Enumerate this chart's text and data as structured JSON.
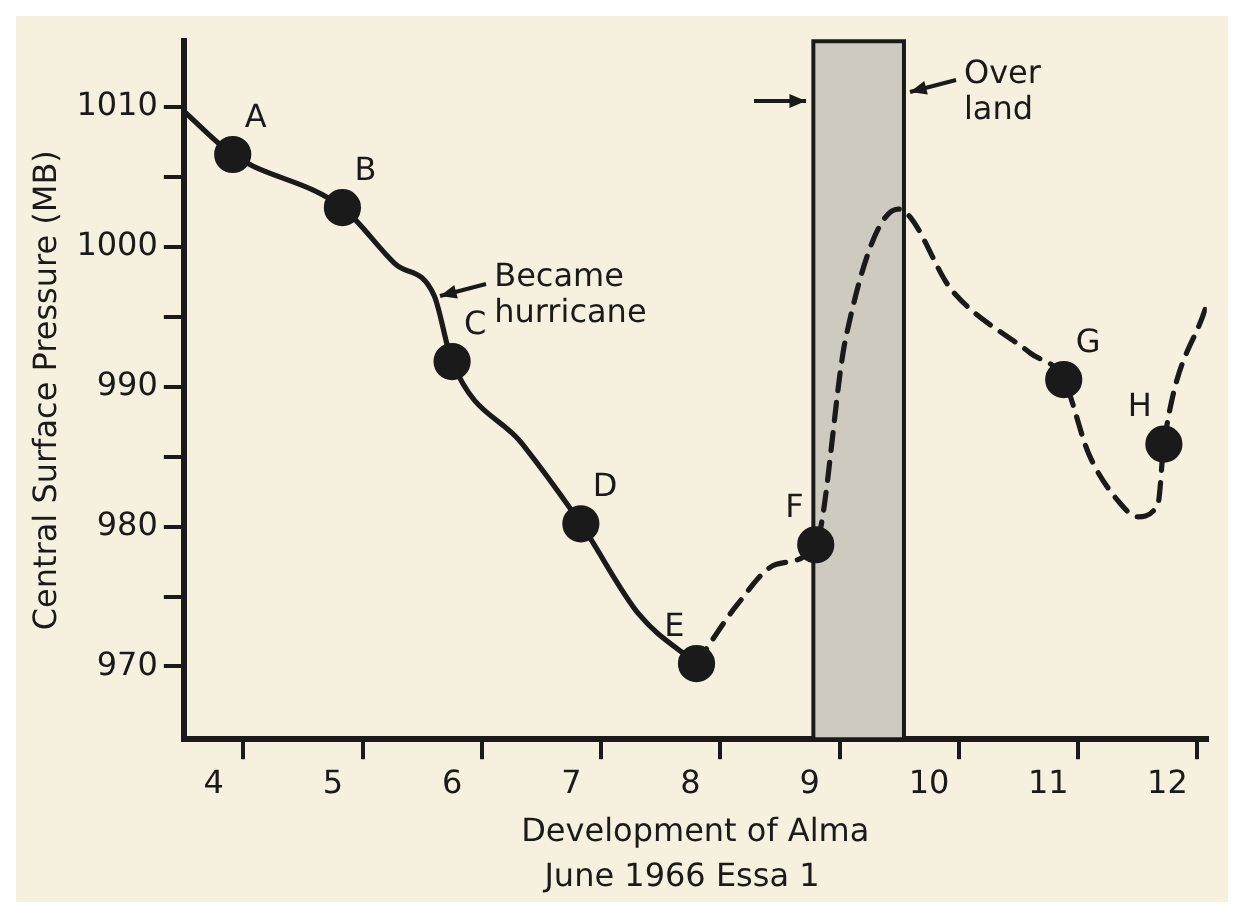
{
  "chart_data": {
    "type": "line",
    "xlabel": "Development of Alma",
    "ylabel": "Central Surface Pressure (MB)",
    "xlim": [
      3.75,
      12.33
    ],
    "ylim": [
      964.8,
      1014.7
    ],
    "xticks": [
      4,
      {
        "value": 4.25,
        "label": null
      },
      5,
      {
        "value": 5.25,
        "label": null
      },
      6,
      {
        "value": 6.25,
        "label": null
      },
      7,
      {
        "value": 7.25,
        "label": null
      },
      8,
      {
        "value": 8.25,
        "label": null
      },
      9,
      {
        "value": 9.25,
        "label": null
      },
      10,
      {
        "value": 10.25,
        "label": null
      },
      11,
      {
        "value": 11.25,
        "label": null
      },
      12,
      {
        "value": 12.25,
        "label": null
      }
    ],
    "yticks": [
      970,
      {
        "value": 975,
        "label": null
      },
      980,
      {
        "value": 985,
        "label": null
      },
      990,
      {
        "value": 995,
        "label": null
      },
      1000,
      {
        "value": 1005,
        "label": null
      },
      1010
    ],
    "grid": false,
    "legend": false,
    "series": [
      {
        "type": "line",
        "color": "#1a1a1a",
        "line_style": "solid",
        "marker": "none",
        "x": [
          3.75,
          4.16,
          5.08,
          5.52,
          5.85,
          6.0,
          6.59,
          7.08,
          7.57,
          8.05
        ],
        "values": [
          1009.7,
          1006.6,
          1002.8,
          998.8,
          996.5,
          991.8,
          985.9,
          980.2,
          973.7,
          970.2
        ]
      },
      {
        "type": "line",
        "color": "#1a1a1a",
        "line_style": "dashed",
        "marker": "none",
        "x": [
          8.05,
          8.39,
          8.72,
          9.05,
          9.3,
          9.74,
          10.2,
          10.85,
          11.13,
          11.34,
          11.59,
          11.75,
          11.92,
          11.97,
          12.33
        ],
        "values": [
          970.2,
          974.4,
          977.3,
          978.7,
          993.4,
          1002.7,
          996.8,
          992.4,
          990.5,
          985.2,
          981.8,
          980.7,
          981.6,
          985.9,
          995.9
        ]
      },
      {
        "type": "scatter",
        "color": "#1a1a1a",
        "marker": "circle",
        "x": [
          4.16,
          5.08,
          6.0,
          7.08,
          8.05,
          9.05,
          11.13,
          11.97
        ],
        "values": [
          1006.6,
          1002.8,
          991.8,
          980.2,
          970.2,
          978.7,
          990.5,
          985.9
        ]
      }
    ],
    "bands": [
      {
        "axis": "x",
        "from": 9.03,
        "to": 9.79,
        "color": "#cfcac0"
      }
    ],
    "annotations": [
      {
        "text": "A",
        "x": 4.16,
        "y": 1006.6
      },
      {
        "text": "B",
        "x": 5.08,
        "y": 1002.8
      },
      {
        "text": "C",
        "x": 6.0,
        "y": 991.8
      },
      {
        "text": "D",
        "x": 7.08,
        "y": 980.2
      },
      {
        "text": "E",
        "x": 8.05,
        "y": 970.2
      },
      {
        "text": "F",
        "x": 9.05,
        "y": 978.7
      },
      {
        "text": "G",
        "x": 11.13,
        "y": 990.5
      },
      {
        "text": "H",
        "x": 11.97,
        "y": 985.9
      },
      {
        "text": "Became hurricane",
        "x": 5.85,
        "y": 996.5
      },
      {
        "text": "Over land",
        "x": 9.79,
        "y": 1011
      },
      "June 1966 Essa 1"
    ]
  }
}
